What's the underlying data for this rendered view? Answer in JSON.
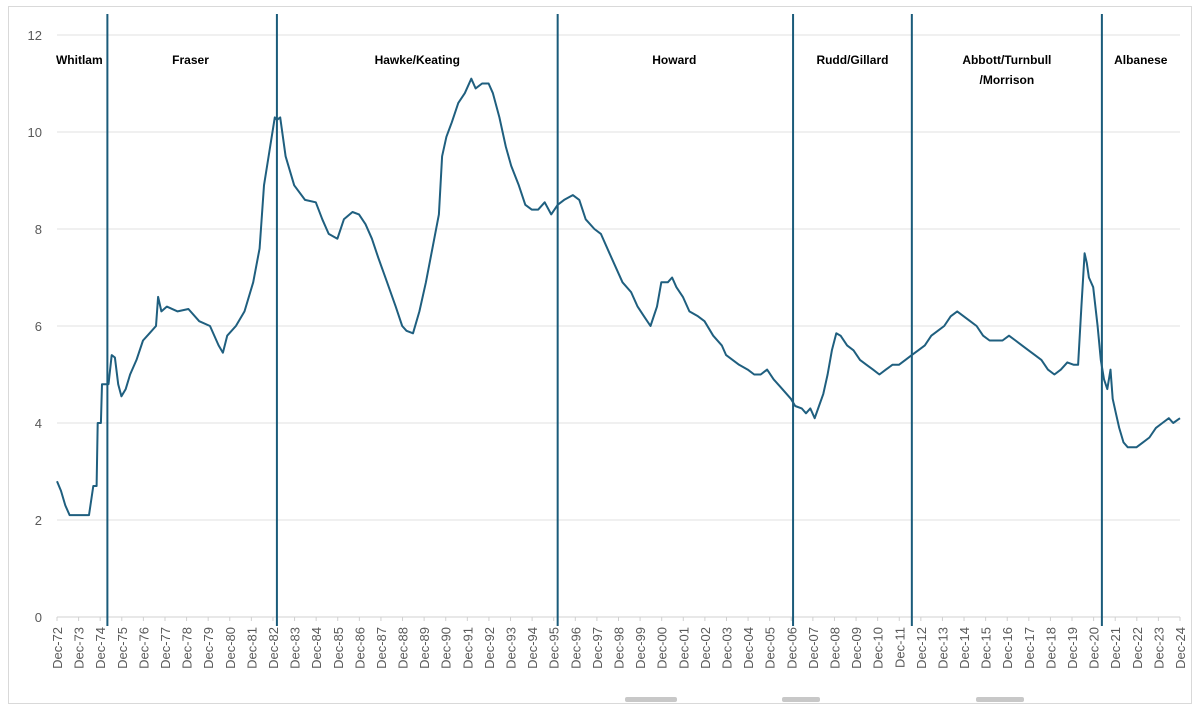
{
  "chart_data": {
    "type": "line",
    "title": "",
    "xlabel": "",
    "ylabel": "",
    "ylim": [
      0,
      12
    ],
    "yticks": [
      0,
      2,
      4,
      6,
      8,
      10,
      12
    ],
    "xlim": [
      1972.917,
      2024.917
    ],
    "grid": "horizontal",
    "line_color": "#1f5f7f",
    "divider_color": "#1a5b7a",
    "x_tick_labels": [
      "Dec-72",
      "Dec-73",
      "Dec-74",
      "Dec-75",
      "Dec-76",
      "Dec-77",
      "Dec-78",
      "Dec-79",
      "Dec-80",
      "Dec-81",
      "Dec-82",
      "Dec-83",
      "Dec-84",
      "Dec-85",
      "Dec-86",
      "Dec-87",
      "Dec-88",
      "Dec-89",
      "Dec-90",
      "Dec-91",
      "Dec-92",
      "Dec-93",
      "Dec-94",
      "Dec-95",
      "Dec-96",
      "Dec-97",
      "Dec-98",
      "Dec-99",
      "Dec-00",
      "Dec-01",
      "Dec-02",
      "Dec-03",
      "Dec-04",
      "Dec-05",
      "Dec-06",
      "Dec-07",
      "Dec-08",
      "Dec-09",
      "Dec-10",
      "Dec-11",
      "Dec-12",
      "Dec-13",
      "Dec-14",
      "Dec-15",
      "Dec-16",
      "Dec-17",
      "Dec-18",
      "Dec-19",
      "Dec-20",
      "Dec-21",
      "Dec-22",
      "Dec-23",
      "Dec-24"
    ],
    "dividers": [
      1975.25,
      1983.1,
      1996.1,
      2007.0,
      2012.5,
      2021.3
    ],
    "eras": [
      {
        "label": "Whitlam",
        "x": 1973.95
      },
      {
        "label": "Fraser",
        "x": 1979.1
      },
      {
        "label": "Hawke/Keating",
        "x": 1989.6
      },
      {
        "label": "Howard",
        "x": 2001.5
      },
      {
        "label": "Rudd/Gillard",
        "x": 2009.75
      },
      {
        "label": "Abbott/Turnbull\n/Morrison",
        "x": 2016.9
      },
      {
        "label": "Albanese",
        "x": 2023.1
      }
    ],
    "series": [
      {
        "name": "",
        "points": [
          [
            1972.917,
            2.8
          ],
          [
            1973.1,
            2.6
          ],
          [
            1973.3,
            2.3
          ],
          [
            1973.5,
            2.1
          ],
          [
            1974.0,
            2.1
          ],
          [
            1974.4,
            2.1
          ],
          [
            1974.6,
            2.7
          ],
          [
            1974.75,
            2.7
          ],
          [
            1974.8,
            4.0
          ],
          [
            1974.95,
            4.0
          ],
          [
            1975.0,
            4.8
          ],
          [
            1975.1,
            4.8
          ],
          [
            1975.3,
            4.8
          ],
          [
            1975.45,
            5.4
          ],
          [
            1975.6,
            5.35
          ],
          [
            1975.75,
            4.8
          ],
          [
            1975.9,
            4.55
          ],
          [
            1976.1,
            4.7
          ],
          [
            1976.3,
            5.0
          ],
          [
            1976.6,
            5.3
          ],
          [
            1976.9,
            5.7
          ],
          [
            1977.2,
            5.85
          ],
          [
            1977.5,
            6.0
          ],
          [
            1977.6,
            6.6
          ],
          [
            1977.75,
            6.3
          ],
          [
            1978.0,
            6.4
          ],
          [
            1978.5,
            6.3
          ],
          [
            1979.0,
            6.35
          ],
          [
            1979.5,
            6.1
          ],
          [
            1980.0,
            6.0
          ],
          [
            1980.4,
            5.6
          ],
          [
            1980.6,
            5.45
          ],
          [
            1980.8,
            5.8
          ],
          [
            1981.2,
            6.0
          ],
          [
            1981.6,
            6.3
          ],
          [
            1982.0,
            6.9
          ],
          [
            1982.3,
            7.6
          ],
          [
            1982.5,
            8.9
          ],
          [
            1982.75,
            9.6
          ],
          [
            1983.0,
            10.3
          ],
          [
            1983.1,
            10.25
          ],
          [
            1983.25,
            10.3
          ],
          [
            1983.5,
            9.5
          ],
          [
            1983.9,
            8.9
          ],
          [
            1984.4,
            8.6
          ],
          [
            1984.9,
            8.55
          ],
          [
            1985.2,
            8.2
          ],
          [
            1985.5,
            7.9
          ],
          [
            1985.9,
            7.8
          ],
          [
            1986.2,
            8.2
          ],
          [
            1986.6,
            8.35
          ],
          [
            1986.9,
            8.3
          ],
          [
            1987.2,
            8.1
          ],
          [
            1987.5,
            7.8
          ],
          [
            1987.8,
            7.4
          ],
          [
            1988.2,
            6.9
          ],
          [
            1988.6,
            6.4
          ],
          [
            1988.9,
            6.0
          ],
          [
            1989.1,
            5.9
          ],
          [
            1989.4,
            5.85
          ],
          [
            1989.7,
            6.3
          ],
          [
            1990.0,
            6.9
          ],
          [
            1990.3,
            7.6
          ],
          [
            1990.6,
            8.3
          ],
          [
            1990.75,
            9.5
          ],
          [
            1990.95,
            9.9
          ],
          [
            1991.2,
            10.2
          ],
          [
            1991.5,
            10.6
          ],
          [
            1991.8,
            10.8
          ],
          [
            1992.1,
            11.1
          ],
          [
            1992.3,
            10.9
          ],
          [
            1992.6,
            11.0
          ],
          [
            1992.9,
            11.0
          ],
          [
            1993.1,
            10.8
          ],
          [
            1993.4,
            10.3
          ],
          [
            1993.7,
            9.7
          ],
          [
            1993.95,
            9.3
          ],
          [
            1994.3,
            8.9
          ],
          [
            1994.6,
            8.5
          ],
          [
            1994.9,
            8.4
          ],
          [
            1995.2,
            8.4
          ],
          [
            1995.5,
            8.55
          ],
          [
            1995.8,
            8.3
          ],
          [
            1996.1,
            8.5
          ],
          [
            1996.4,
            8.6
          ],
          [
            1996.8,
            8.7
          ],
          [
            1997.1,
            8.6
          ],
          [
            1997.4,
            8.2
          ],
          [
            1997.8,
            8.0
          ],
          [
            1998.1,
            7.9
          ],
          [
            1998.5,
            7.5
          ],
          [
            1998.8,
            7.2
          ],
          [
            1999.1,
            6.9
          ],
          [
            1999.5,
            6.7
          ],
          [
            1999.8,
            6.4
          ],
          [
            2000.1,
            6.2
          ],
          [
            2000.4,
            6.0
          ],
          [
            2000.7,
            6.4
          ],
          [
            2000.9,
            6.9
          ],
          [
            2001.2,
            6.9
          ],
          [
            2001.4,
            7.0
          ],
          [
            2001.6,
            6.8
          ],
          [
            2001.9,
            6.6
          ],
          [
            2002.2,
            6.3
          ],
          [
            2002.6,
            6.2
          ],
          [
            2002.9,
            6.1
          ],
          [
            2003.3,
            5.8
          ],
          [
            2003.7,
            5.6
          ],
          [
            2003.9,
            5.4
          ],
          [
            2004.2,
            5.3
          ],
          [
            2004.5,
            5.2
          ],
          [
            2004.9,
            5.1
          ],
          [
            2005.2,
            5.0
          ],
          [
            2005.5,
            5.0
          ],
          [
            2005.8,
            5.1
          ],
          [
            2006.1,
            4.9
          ],
          [
            2006.4,
            4.75
          ],
          [
            2006.7,
            4.6
          ],
          [
            2006.9,
            4.5
          ],
          [
            2007.1,
            4.35
          ],
          [
            2007.4,
            4.3
          ],
          [
            2007.6,
            4.2
          ],
          [
            2007.8,
            4.3
          ],
          [
            2008.0,
            4.1
          ],
          [
            2008.2,
            4.35
          ],
          [
            2008.4,
            4.6
          ],
          [
            2008.6,
            5.0
          ],
          [
            2008.8,
            5.5
          ],
          [
            2009.0,
            5.85
          ],
          [
            2009.2,
            5.8
          ],
          [
            2009.5,
            5.6
          ],
          [
            2009.8,
            5.5
          ],
          [
            2010.1,
            5.3
          ],
          [
            2010.4,
            5.2
          ],
          [
            2010.7,
            5.1
          ],
          [
            2011.0,
            5.0
          ],
          [
            2011.3,
            5.1
          ],
          [
            2011.6,
            5.2
          ],
          [
            2011.9,
            5.2
          ],
          [
            2012.2,
            5.3
          ],
          [
            2012.5,
            5.4
          ],
          [
            2012.8,
            5.5
          ],
          [
            2013.1,
            5.6
          ],
          [
            2013.4,
            5.8
          ],
          [
            2013.7,
            5.9
          ],
          [
            2014.0,
            6.0
          ],
          [
            2014.3,
            6.2
          ],
          [
            2014.6,
            6.3
          ],
          [
            2014.9,
            6.2
          ],
          [
            2015.2,
            6.1
          ],
          [
            2015.5,
            6.0
          ],
          [
            2015.8,
            5.8
          ],
          [
            2016.1,
            5.7
          ],
          [
            2016.4,
            5.7
          ],
          [
            2016.7,
            5.7
          ],
          [
            2017.0,
            5.8
          ],
          [
            2017.3,
            5.7
          ],
          [
            2017.6,
            5.6
          ],
          [
            2017.9,
            5.5
          ],
          [
            2018.2,
            5.4
          ],
          [
            2018.5,
            5.3
          ],
          [
            2018.8,
            5.1
          ],
          [
            2019.1,
            5.0
          ],
          [
            2019.4,
            5.1
          ],
          [
            2019.7,
            5.25
          ],
          [
            2020.0,
            5.2
          ],
          [
            2020.2,
            5.2
          ],
          [
            2020.35,
            6.4
          ],
          [
            2020.5,
            7.5
          ],
          [
            2020.6,
            7.3
          ],
          [
            2020.7,
            7.0
          ],
          [
            2020.9,
            6.8
          ],
          [
            2021.1,
            6.0
          ],
          [
            2021.25,
            5.3
          ],
          [
            2021.4,
            4.9
          ],
          [
            2021.55,
            4.7
          ],
          [
            2021.7,
            5.1
          ],
          [
            2021.8,
            4.5
          ],
          [
            2021.95,
            4.2
          ],
          [
            2022.1,
            3.9
          ],
          [
            2022.3,
            3.6
          ],
          [
            2022.5,
            3.5
          ],
          [
            2022.7,
            3.5
          ],
          [
            2022.9,
            3.5
          ],
          [
            2023.2,
            3.6
          ],
          [
            2023.5,
            3.7
          ],
          [
            2023.8,
            3.9
          ],
          [
            2024.1,
            4.0
          ],
          [
            2024.4,
            4.1
          ],
          [
            2024.6,
            4.0
          ],
          [
            2024.917,
            4.1
          ]
        ]
      }
    ]
  }
}
